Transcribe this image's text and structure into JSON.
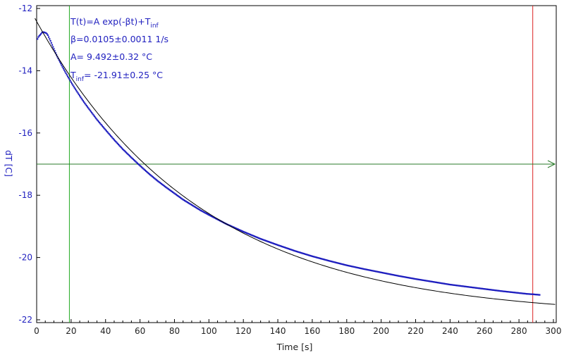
{
  "chart_data": {
    "type": "scatter",
    "xlabel": "Time [s]",
    "ylabel": "dT [C]",
    "xlim": [
      0,
      300
    ],
    "ylim": [
      -22,
      -12
    ],
    "x_ticks": [
      0,
      20,
      40,
      60,
      80,
      100,
      120,
      140,
      160,
      180,
      200,
      220,
      240,
      260,
      280,
      300
    ],
    "y_ticks": [
      -12,
      -14,
      -16,
      -18,
      -20,
      -22
    ],
    "grid": false,
    "fit": {
      "model": "T(t)=A exp(-βt)+T_inf",
      "beta": 0.0105,
      "A": 9.492,
      "T_inf": -21.91,
      "x_range": [
        -1,
        301
      ]
    },
    "annotations": {
      "formula_main": "T(t)=A exp(-βt)+T",
      "formula_sub": "inf",
      "beta_line": "β=0.0105±0.0011 1/s",
      "A_line": "A= 9.492±0.32 °C",
      "tinf_main": "T",
      "tinf_sub": "inf",
      "tinf_rest": "= -21.91±0.25 °C"
    },
    "series": [
      {
        "color": "#1f1fbf",
        "x": [
          0.5,
          1,
          1.5,
          2,
          2.5,
          3,
          3.5,
          4,
          4.5,
          5,
          5.5,
          6,
          6.5,
          7,
          7.5,
          8,
          9,
          10,
          11,
          12,
          13,
          14,
          15,
          16,
          17,
          18,
          19,
          20,
          22,
          24,
          26,
          28,
          30,
          35,
          40,
          45,
          50,
          55,
          60,
          65,
          70,
          75,
          80,
          85,
          90,
          95,
          100,
          110,
          120,
          130,
          140,
          150,
          160,
          170,
          180,
          190,
          200,
          210,
          220,
          230,
          240,
          250,
          260,
          270,
          280,
          285,
          288,
          292
        ],
        "y": [
          -12.98,
          -12.92,
          -12.88,
          -12.85,
          -12.82,
          -12.78,
          -12.76,
          -12.76,
          -12.77,
          -12.78,
          -12.79,
          -12.82,
          -12.86,
          -12.92,
          -12.98,
          -13.04,
          -13.17,
          -13.3,
          -13.43,
          -13.55,
          -13.66,
          -13.77,
          -13.88,
          -13.98,
          -14.08,
          -14.18,
          -14.27,
          -14.37,
          -14.55,
          -14.72,
          -14.89,
          -15.05,
          -15.2,
          -15.57,
          -15.9,
          -16.22,
          -16.52,
          -16.79,
          -17.05,
          -17.3,
          -17.53,
          -17.74,
          -17.94,
          -18.14,
          -18.31,
          -18.48,
          -18.63,
          -18.92,
          -19.17,
          -19.4,
          -19.6,
          -19.79,
          -19.96,
          -20.11,
          -20.25,
          -20.37,
          -20.48,
          -20.59,
          -20.69,
          -20.78,
          -20.87,
          -20.94,
          -21.01,
          -21.08,
          -21.14,
          -21.17,
          -21.18,
          -21.2
        ]
      }
    ],
    "markers": {
      "green_vertical_x": 19,
      "red_vertical_x": 288,
      "green_horizontal_y": -17
    },
    "colors": {
      "points": "#1f1fbf",
      "fit": "#000000",
      "green": "#22aa22",
      "green_horizontal": "#2a7a2a",
      "red": "#dd2222"
    }
  }
}
